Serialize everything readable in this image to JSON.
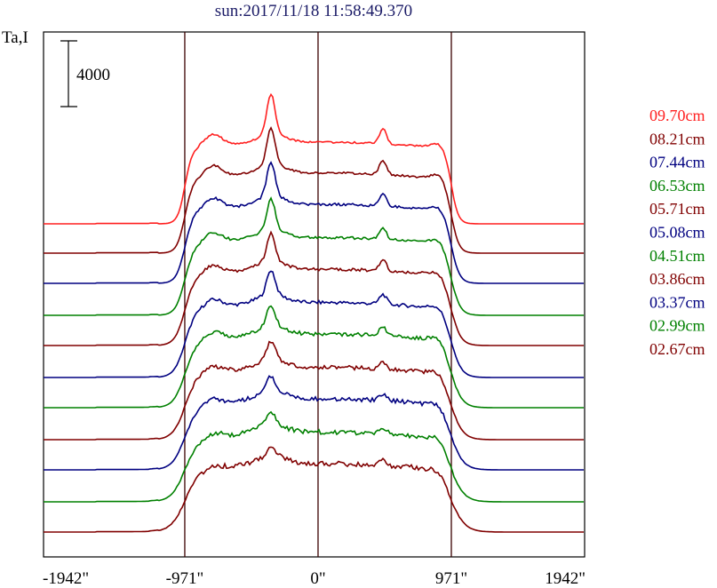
{
  "chart_data": {
    "type": "line",
    "title": "sun:2017/11/18 11:58:49.370",
    "ylabel": "Ta,I",
    "scale_bar_label": "4000",
    "scale_bar_value": 4000,
    "xlim": [
      -2000,
      1942
    ],
    "x_ticks": [
      {
        "value": -1942,
        "label": "-1942\""
      },
      {
        "value": -971,
        "label": "-971\""
      },
      {
        "value": 0,
        "label": "0\""
      },
      {
        "value": 971,
        "label": "971\""
      },
      {
        "value": 1942,
        "label": "1942\""
      }
    ],
    "vertical_lines_at": [
      -971,
      0,
      971
    ],
    "series": [
      {
        "name": "09.70cm",
        "color": "#ff2020"
      },
      {
        "name": "08.21cm",
        "color": "#800000"
      },
      {
        "name": "07.44cm",
        "color": "#000080"
      },
      {
        "name": "06.53cm",
        "color": "#008000"
      },
      {
        "name": "05.71cm",
        "color": "#800000"
      },
      {
        "name": "05.08cm",
        "color": "#000080"
      },
      {
        "name": "04.51cm",
        "color": "#008000"
      },
      {
        "name": "03.86cm",
        "color": "#800000"
      },
      {
        "name": "03.37cm",
        "color": "#000080"
      },
      {
        "name": "02.99cm",
        "color": "#008000"
      },
      {
        "name": "02.67cm",
        "color": "#800000"
      }
    ]
  }
}
